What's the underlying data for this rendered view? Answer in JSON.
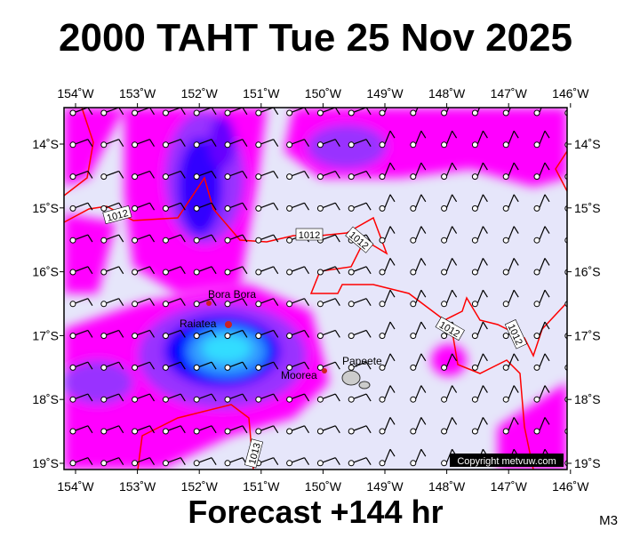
{
  "header": {
    "title": "2000 TAHT Tue 25 Nov 2025"
  },
  "map": {
    "lon_labels": [
      "154˚W",
      "153˚W",
      "152˚W",
      "151˚W",
      "150˚W",
      "149˚W",
      "148˚W",
      "147˚W",
      "146˚W"
    ],
    "lat_labels": [
      "14˚S",
      "15˚S",
      "16˚S",
      "17˚S",
      "18˚S",
      "19˚S"
    ],
    "places": [
      "Bora Bora",
      "Raiatea",
      "Moorea",
      "Papeete"
    ],
    "isobar_labels": [
      "1012",
      "1012",
      "1012",
      "1012",
      "1012",
      "1013"
    ],
    "copyright": "Copyright metvuw.com"
  },
  "footer": {
    "caption": "Forecast +144 hr",
    "code": "M3"
  }
}
